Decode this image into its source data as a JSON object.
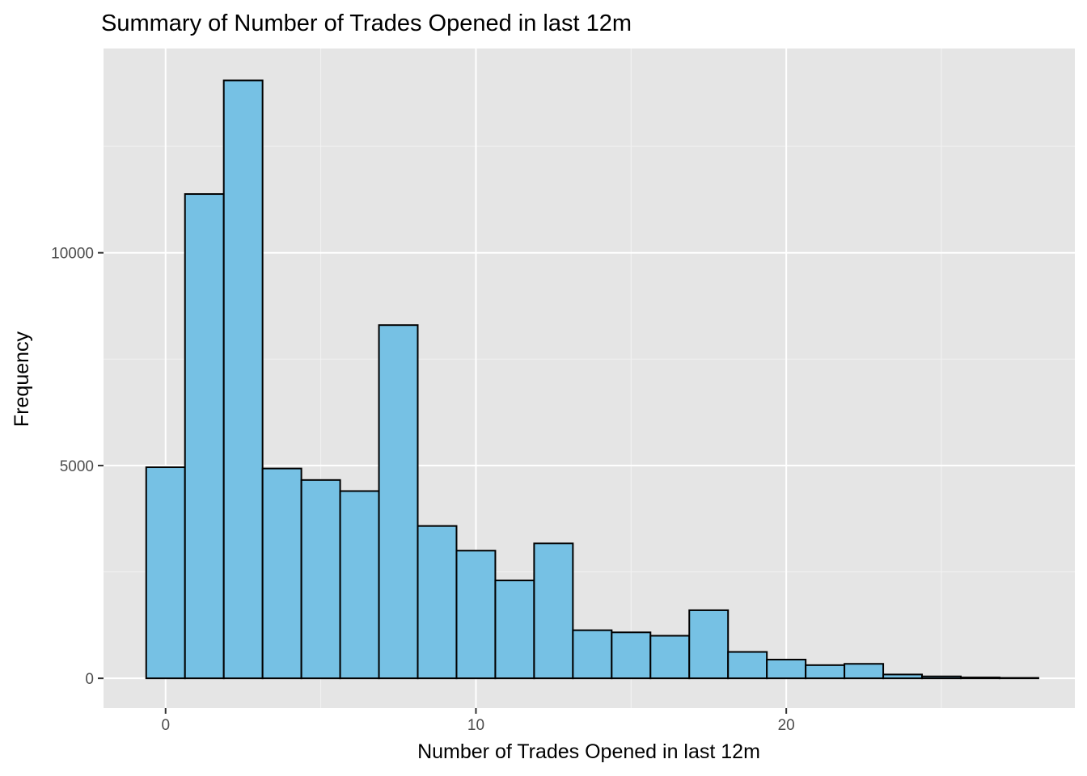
{
  "chart_data": {
    "type": "bar",
    "subtype": "histogram",
    "title": "Summary of Number of Trades Opened in last 12m",
    "xlabel": "Number of Trades Opened in last 12m",
    "ylabel": "Frequency",
    "x_ticks": [
      0,
      10,
      20
    ],
    "y_ticks": [
      0,
      5000,
      10000
    ],
    "xlim": [
      -2.0,
      29.3
    ],
    "ylim": [
      -700,
      14800
    ],
    "bin_width": 1.25,
    "bins": [
      {
        "start": -0.625,
        "end": 0.625,
        "value": 4960
      },
      {
        "start": 0.625,
        "end": 1.875,
        "value": 11380
      },
      {
        "start": 1.875,
        "end": 3.125,
        "value": 14050
      },
      {
        "start": 3.125,
        "end": 4.375,
        "value": 4930
      },
      {
        "start": 4.375,
        "end": 5.625,
        "value": 4660
      },
      {
        "start": 5.625,
        "end": 6.875,
        "value": 4400
      },
      {
        "start": 6.875,
        "end": 8.125,
        "value": 8300
      },
      {
        "start": 8.125,
        "end": 9.375,
        "value": 3580
      },
      {
        "start": 9.375,
        "end": 10.625,
        "value": 3000
      },
      {
        "start": 10.625,
        "end": 11.875,
        "value": 2300
      },
      {
        "start": 11.875,
        "end": 13.125,
        "value": 3170
      },
      {
        "start": 13.125,
        "end": 14.375,
        "value": 1130
      },
      {
        "start": 14.375,
        "end": 15.625,
        "value": 1080
      },
      {
        "start": 15.625,
        "end": 16.875,
        "value": 1000
      },
      {
        "start": 16.875,
        "end": 18.125,
        "value": 1600
      },
      {
        "start": 18.125,
        "end": 19.375,
        "value": 620
      },
      {
        "start": 19.375,
        "end": 20.625,
        "value": 440
      },
      {
        "start": 20.625,
        "end": 21.875,
        "value": 310
      },
      {
        "start": 21.875,
        "end": 23.125,
        "value": 340
      },
      {
        "start": 23.125,
        "end": 24.375,
        "value": 90
      },
      {
        "start": 24.375,
        "end": 25.625,
        "value": 45
      },
      {
        "start": 25.625,
        "end": 26.875,
        "value": 20
      },
      {
        "start": 26.875,
        "end": 28.125,
        "value": 10
      }
    ],
    "grid": true,
    "legend": "none",
    "colors": {
      "bar_fill": "#76c1e4",
      "bar_stroke": "#000000",
      "panel_background": "#e5e5e5",
      "grid_major": "#ffffff",
      "grid_minor": "#f2f2f2",
      "tick_label": "#4d4d4d"
    }
  }
}
